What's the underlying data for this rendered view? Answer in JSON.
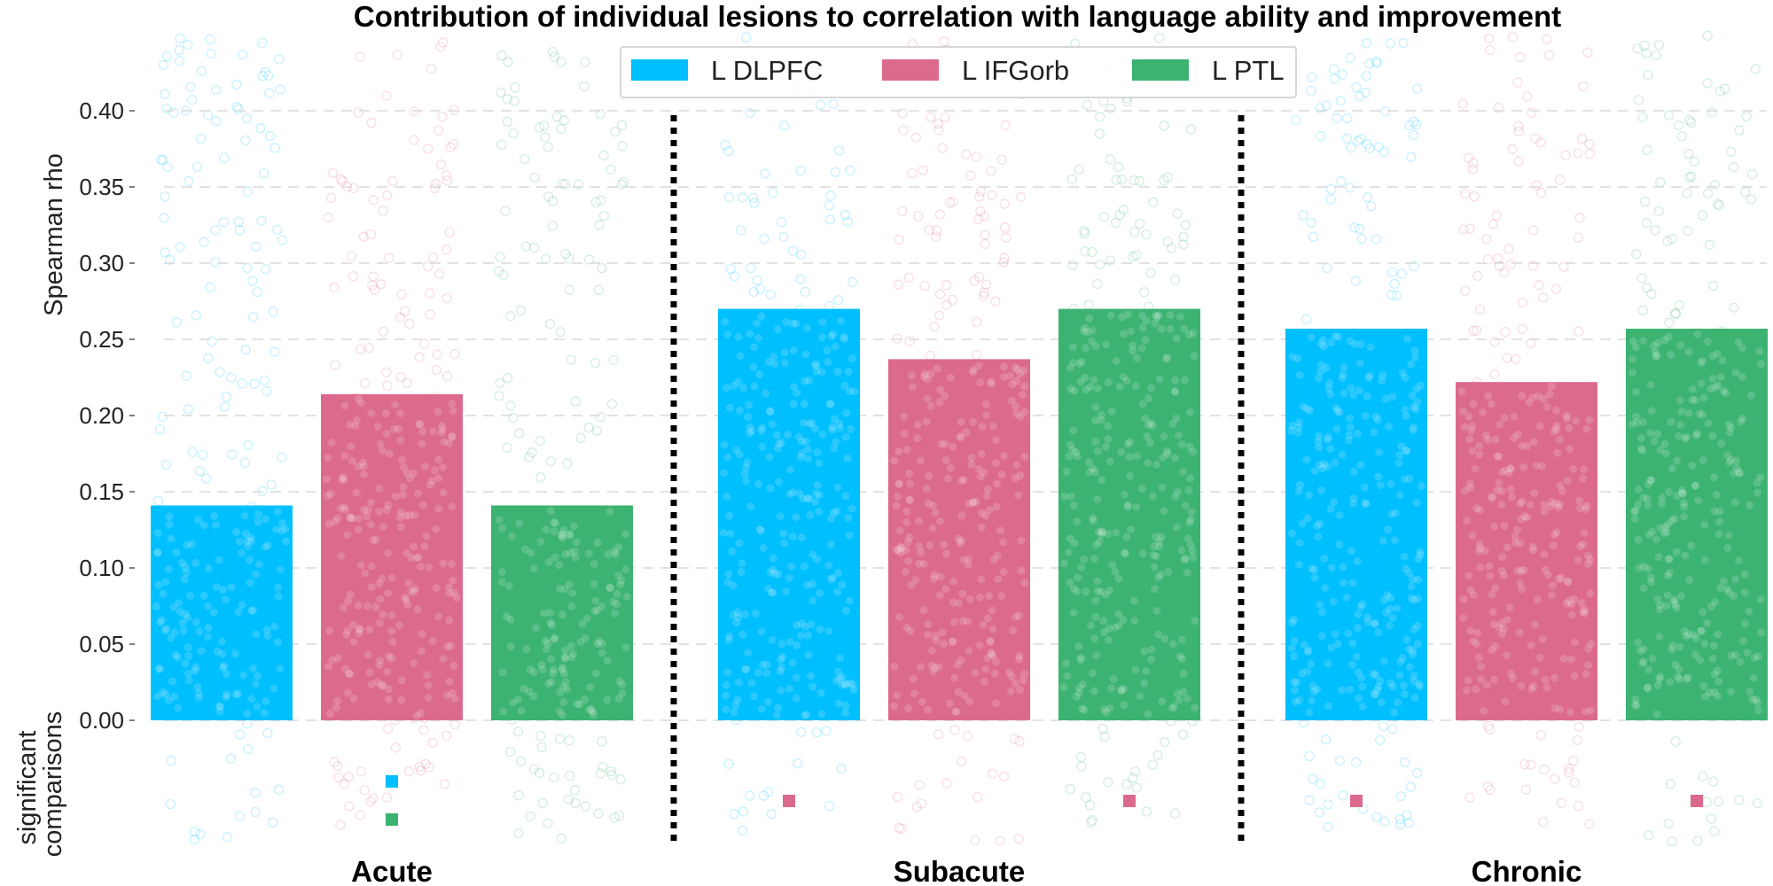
{
  "chart_data": {
    "type": "bar",
    "title": "Contribution of individual lesions to correlation with language ability and improvement",
    "ylabel": "Spearman rho",
    "lower_panel_label": [
      "significant",
      "comparisons"
    ],
    "ylim": [
      0,
      0.42
    ],
    "yticks": [
      "0.00",
      "0.05",
      "0.10",
      "0.15",
      "0.20",
      "0.25",
      "0.30",
      "0.35",
      "0.40"
    ],
    "grid": "horizontal dashed",
    "legend_position": "top-center",
    "categories": [
      "Acute",
      "Subacute",
      "Chronic"
    ],
    "series": [
      {
        "name": "L DLPFC",
        "color": "#00bfff",
        "values": [
          0.141,
          0.27,
          0.257
        ]
      },
      {
        "name": "L IFGorb",
        "color": "#dc6a8d",
        "values": [
          0.214,
          0.237,
          0.222
        ]
      },
      {
        "name": "L PTL",
        "color": "#3cb371",
        "values": [
          0.141,
          0.27,
          0.257
        ]
      }
    ],
    "significant_comparisons": [
      {
        "group": "Acute",
        "series": "L IFGorb",
        "markers": [
          "L DLPFC",
          "L PTL"
        ]
      },
      {
        "group": "Subacute",
        "series": "L DLPFC",
        "markers": [
          "L IFGorb"
        ]
      },
      {
        "group": "Subacute",
        "series": "L PTL",
        "markers": [
          "L IFGorb"
        ]
      },
      {
        "group": "Chronic",
        "series": "L DLPFC",
        "markers": [
          "L IFGorb"
        ]
      },
      {
        "group": "Chronic",
        "series": "L PTL",
        "markers": [
          "L IFGorb"
        ]
      }
    ]
  }
}
